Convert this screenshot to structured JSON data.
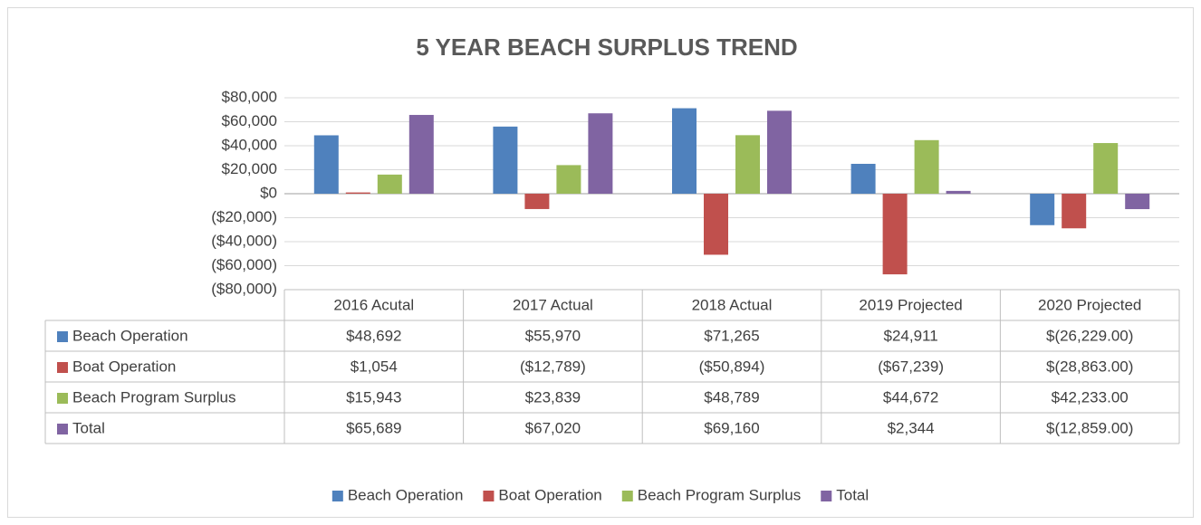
{
  "chart_data": {
    "type": "bar",
    "title": "5 YEAR BEACH SURPLUS TREND",
    "categories": [
      "2016 Acutal",
      "2017 Actual",
      "2018 Actual",
      "2019 Projected",
      "2020 Projected"
    ],
    "series": [
      {
        "name": "Beach Operation",
        "color": "#4f81bd",
        "values": [
          48692,
          55970,
          71265,
          24911,
          -26229
        ],
        "value_labels": [
          "$48,692",
          "$55,970",
          "$71,265",
          "$24,911",
          "$(26,229.00)"
        ]
      },
      {
        "name": "Boat Operation",
        "color": "#c0504d",
        "values": [
          1054,
          -12789,
          -50894,
          -67239,
          -28863
        ],
        "value_labels": [
          "$1,054",
          "($12,789)",
          "($50,894)",
          "($67,239)",
          "$(28,863.00)"
        ]
      },
      {
        "name": "Beach Program Surplus",
        "color": "#9bbb59",
        "values": [
          15943,
          23839,
          48789,
          44672,
          42233
        ],
        "value_labels": [
          "$15,943",
          "$23,839",
          "$48,789",
          "$44,672",
          "$42,233.00"
        ]
      },
      {
        "name": "Total",
        "color": "#8064a2",
        "values": [
          65689,
          67020,
          69160,
          2344,
          -12859
        ],
        "value_labels": [
          "$65,689",
          "$67,020",
          "$69,160",
          "$2,344",
          "$(12,859.00)"
        ]
      }
    ],
    "ylim": [
      -80000,
      80000
    ],
    "yticks": [
      {
        "value": -80000,
        "label": "($80,000)"
      },
      {
        "value": -60000,
        "label": "($60,000)"
      },
      {
        "value": -40000,
        "label": "($40,000)"
      },
      {
        "value": -20000,
        "label": "($20,000)"
      },
      {
        "value": 0,
        "label": "$0"
      },
      {
        "value": 20000,
        "label": "$20,000"
      },
      {
        "value": 40000,
        "label": "$40,000"
      },
      {
        "value": 60000,
        "label": "$60,000"
      },
      {
        "value": 80000,
        "label": "$80,000"
      }
    ],
    "grid": true,
    "legend": "bottom"
  }
}
